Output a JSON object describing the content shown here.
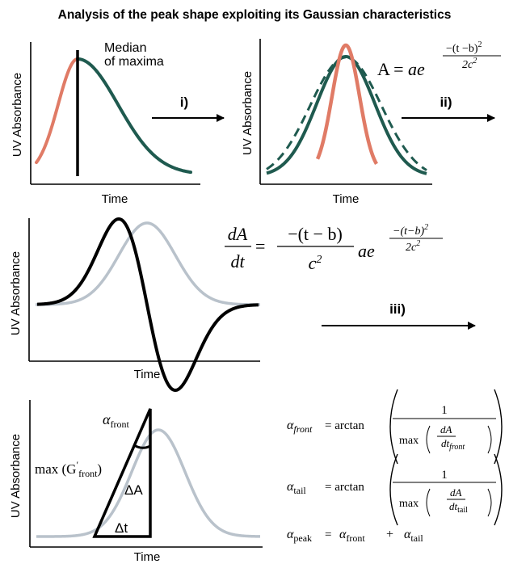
{
  "title": "Analysis of the peak shape exploiting its Gaussian characteristics",
  "colors": {
    "front": "#e07b66",
    "tail": "#1f5a4f",
    "gaussian_grey": "#b9c2cb",
    "derivative": "#000000"
  },
  "panel1": {
    "ylabel": "UV Absorbance",
    "xlabel": "Time",
    "annotation_line1": "Median",
    "annotation_line2": "of maxima"
  },
  "panel2": {
    "ylabel": "UV Absorbance",
    "xlabel": "Time",
    "eq_lhs": "A = ",
    "eq_a": "ae",
    "eq_exp_num": "−(t −b)",
    "eq_exp_pow": "2",
    "eq_exp_den": "2c",
    "eq_exp_den_pow": "2"
  },
  "panel3": {
    "ylabel": "UV Absorbance",
    "xlabel": "Time",
    "eq_dA": "dA",
    "eq_dt": "dt",
    "eq_eq": "=",
    "eq_num": "−(t − b)",
    "eq_den": "c",
    "eq_den_pow": "2",
    "eq_ae": "ae",
    "eq_exp_num": "−(t−b)",
    "eq_exp_pow": "2",
    "eq_exp_den": "2c",
    "eq_exp_den_pow": "2"
  },
  "panel4": {
    "ylabel": "UV Absorbance",
    "xlabel": "Time",
    "alpha_front": "α",
    "alpha_front_sub": "front",
    "max_label": "max (G",
    "max_prime": "′",
    "max_sub": "front",
    "max_close": ")",
    "delta_A": "ΔA",
    "delta_t": "Δt"
  },
  "equations": {
    "alpha": "α",
    "front_it": "front",
    "eq_arctan": "= arctan",
    "one": "1",
    "max": "max",
    "dA": "dA",
    "dt": "dt",
    "front_sub_it": "front",
    "tail_sub": "tail",
    "peak_sub": "peak",
    "plus": "+",
    "equals": "="
  },
  "steps": {
    "step1": "i)",
    "step2": "ii)",
    "step3": "iii)"
  }
}
